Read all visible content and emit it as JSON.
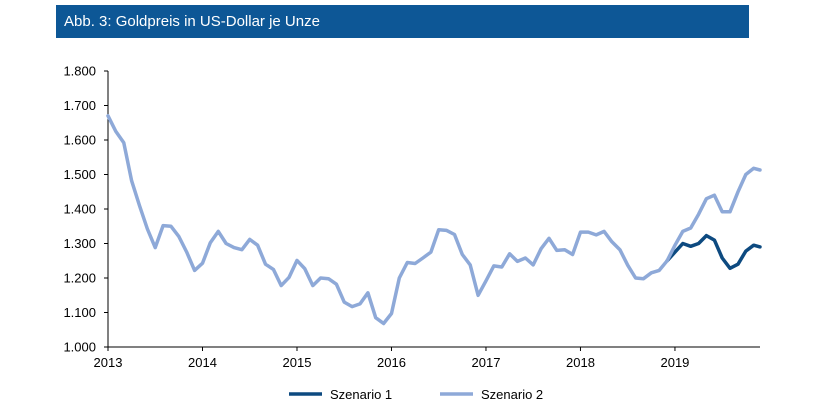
{
  "header": {
    "title": "Abb. 3: Goldpreis in US-Dollar je Unze"
  },
  "chart_data": {
    "type": "line",
    "title": "Abb. 3: Goldpreis in US-Dollar je Unze",
    "xlabel": "",
    "ylabel": "",
    "xlim": [
      2013.0,
      2019.9
    ],
    "ylim": [
      1000,
      1800
    ],
    "yticks": [
      1000,
      1100,
      1200,
      1300,
      1400,
      1500,
      1600,
      1700,
      1800
    ],
    "ytick_labels": [
      "1.000",
      "1.100",
      "1.200",
      "1.300",
      "1.400",
      "1.500",
      "1.600",
      "1.700",
      "1.800"
    ],
    "xticks": [
      2013,
      2014,
      2015,
      2016,
      2017,
      2018,
      2019
    ],
    "xtick_labels": [
      "2013",
      "2014",
      "2015",
      "2016",
      "2017",
      "2018",
      "2019"
    ],
    "grid": false,
    "legend": "bottom",
    "colors": {
      "axis": "#000000",
      "scenario1": "#0d4a80",
      "scenario2": "#8ea9d8"
    },
    "series": [
      {
        "name": "Szenario 1",
        "x": [
          2018.917,
          2019.0,
          2019.083,
          2019.167,
          2019.25,
          2019.333,
          2019.417,
          2019.5,
          2019.583,
          2019.667,
          2019.75,
          2019.833,
          2019.9
        ],
        "values": [
          1250,
          1275,
          1300,
          1292,
          1300,
          1323,
          1310,
          1258,
          1228,
          1240,
          1278,
          1295,
          1290
        ]
      },
      {
        "name": "Szenario 2",
        "x": [
          2013.0,
          2013.083,
          2013.167,
          2013.25,
          2013.333,
          2013.417,
          2013.5,
          2013.583,
          2013.667,
          2013.75,
          2013.833,
          2013.917,
          2014.0,
          2014.083,
          2014.167,
          2014.25,
          2014.333,
          2014.417,
          2014.5,
          2014.583,
          2014.667,
          2014.75,
          2014.833,
          2014.917,
          2015.0,
          2015.083,
          2015.167,
          2015.25,
          2015.333,
          2015.417,
          2015.5,
          2015.583,
          2015.667,
          2015.75,
          2015.833,
          2015.917,
          2016.0,
          2016.083,
          2016.167,
          2016.25,
          2016.333,
          2016.417,
          2016.5,
          2016.583,
          2016.667,
          2016.75,
          2016.833,
          2016.917,
          2017.0,
          2017.083,
          2017.167,
          2017.25,
          2017.333,
          2017.417,
          2017.5,
          2017.583,
          2017.667,
          2017.75,
          2017.833,
          2017.917,
          2018.0,
          2018.083,
          2018.167,
          2018.25,
          2018.333,
          2018.417,
          2018.5,
          2018.583,
          2018.667,
          2018.75,
          2018.833,
          2018.917,
          2019.0,
          2019.083,
          2019.167,
          2019.25,
          2019.333,
          2019.417,
          2019.5,
          2019.583,
          2019.667,
          2019.75,
          2019.833,
          2019.9
        ],
        "values": [
          1670,
          1625,
          1592,
          1482,
          1410,
          1342,
          1288,
          1352,
          1350,
          1320,
          1275,
          1222,
          1243,
          1302,
          1335,
          1300,
          1288,
          1282,
          1312,
          1295,
          1240,
          1225,
          1178,
          1202,
          1251,
          1227,
          1178,
          1200,
          1198,
          1182,
          1130,
          1117,
          1125,
          1157,
          1085,
          1068,
          1097,
          1200,
          1245,
          1242,
          1258,
          1275,
          1340,
          1338,
          1326,
          1268,
          1238,
          1150,
          1192,
          1235,
          1232,
          1270,
          1248,
          1258,
          1238,
          1285,
          1315,
          1280,
          1282,
          1268,
          1333,
          1333,
          1325,
          1335,
          1305,
          1282,
          1237,
          1200,
          1198,
          1215,
          1222,
          1250,
          1295,
          1335,
          1345,
          1385,
          1430,
          1440,
          1392,
          1392,
          1450,
          1500,
          1518,
          1513
        ]
      }
    ]
  }
}
